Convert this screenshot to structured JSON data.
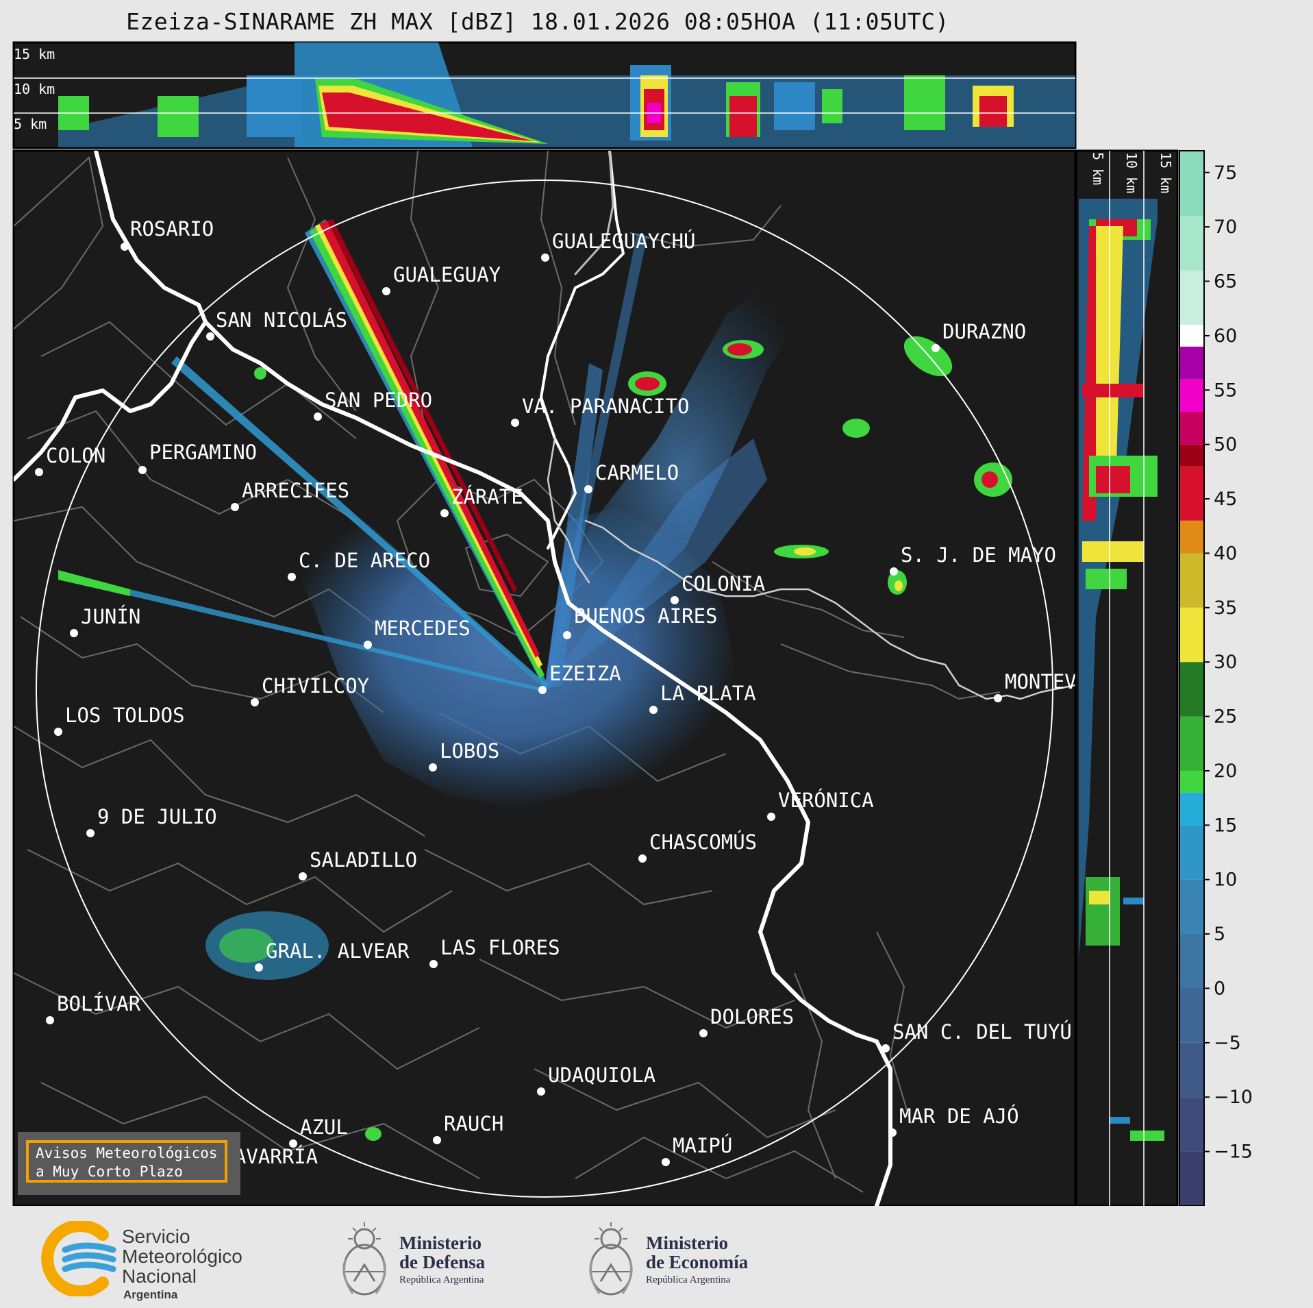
{
  "title": "Ezeiza-SINARAME ZH MAX [dBZ] 18.01.2026 08:05HOA (11:05UTC)",
  "top_panel": {
    "labels": [
      "15 km",
      "10 km",
      "5 km"
    ]
  },
  "side_panel": {
    "labels": [
      "5 km",
      "10 km",
      "15 km"
    ]
  },
  "colorbar": {
    "ticks": [
      "75",
      "70",
      "65",
      "60",
      "55",
      "50",
      "45",
      "40",
      "35",
      "30",
      "25",
      "20",
      "15",
      "10",
      "5",
      "0",
      "−5",
      "−10",
      "−15"
    ],
    "bands": [
      {
        "from": -20,
        "to": -15,
        "color": "#3b3f6b"
      },
      {
        "from": -15,
        "to": -10,
        "color": "#3f4b7a"
      },
      {
        "from": -10,
        "to": -5,
        "color": "#405a88"
      },
      {
        "from": -5,
        "to": 0,
        "color": "#3f6795"
      },
      {
        "from": 0,
        "to": 5,
        "color": "#3c74a2"
      },
      {
        "from": 5,
        "to": 10,
        "color": "#3a84b4"
      },
      {
        "from": 10,
        "to": 15,
        "color": "#2f96c8"
      },
      {
        "from": 15,
        "to": 18,
        "color": "#26acd9"
      },
      {
        "from": 18,
        "to": 20,
        "color": "#3fd63f"
      },
      {
        "from": 20,
        "to": 25,
        "color": "#35b135"
      },
      {
        "from": 25,
        "to": 30,
        "color": "#257a25"
      },
      {
        "from": 30,
        "to": 35,
        "color": "#efe43a"
      },
      {
        "from": 35,
        "to": 40,
        "color": "#cdb92a"
      },
      {
        "from": 40,
        "to": 43,
        "color": "#e08a18"
      },
      {
        "from": 43,
        "to": 48,
        "color": "#d7102c"
      },
      {
        "from": 48,
        "to": 50,
        "color": "#9d0015"
      },
      {
        "from": 50,
        "to": 53,
        "color": "#c6005e"
      },
      {
        "from": 53,
        "to": 56,
        "color": "#f000c8"
      },
      {
        "from": 56,
        "to": 59,
        "color": "#a800a8"
      },
      {
        "from": 59,
        "to": 61,
        "color": "#ffffff"
      },
      {
        "from": 61,
        "to": 66,
        "color": "#c8eee0"
      },
      {
        "from": 66,
        "to": 71,
        "color": "#a8e6cc"
      },
      {
        "from": 71,
        "to": 77,
        "color": "#8adcbc"
      }
    ]
  },
  "cities": [
    {
      "name": "ROSARIO"
    },
    {
      "name": "GUALEGUAYCHÚ"
    },
    {
      "name": "GUALEGUAY"
    },
    {
      "name": "SAN NICOLÁS"
    },
    {
      "name": "DURAZNO"
    },
    {
      "name": "SAN PEDRO"
    },
    {
      "name": "VA. PARANACITO"
    },
    {
      "name": "COLON"
    },
    {
      "name": "PERGAMINO"
    },
    {
      "name": "CARMELO"
    },
    {
      "name": "ARRECIFES"
    },
    {
      "name": "ZÁRATE"
    },
    {
      "name": "S. J. DE MAYO"
    },
    {
      "name": "C. DE ARECO"
    },
    {
      "name": "COLONIA"
    },
    {
      "name": "JUNÍN"
    },
    {
      "name": "BUENOS AIRES"
    },
    {
      "name": "MERCEDES"
    },
    {
      "name": "EZEIZA"
    },
    {
      "name": "MONTEVIDEO"
    },
    {
      "name": "CHIVILCOY"
    },
    {
      "name": "LA PLATA"
    },
    {
      "name": "LOS TOLDOS"
    },
    {
      "name": "LOBOS"
    },
    {
      "name": "VERÓNICA"
    },
    {
      "name": "9 DE JULIO"
    },
    {
      "name": "CHASCOMÚS"
    },
    {
      "name": "SALADILLO"
    },
    {
      "name": "GRAL. ALVEAR"
    },
    {
      "name": "LAS FLORES"
    },
    {
      "name": "BOLÍVAR"
    },
    {
      "name": "DOLORES"
    },
    {
      "name": "SAN C. DEL TUYÚ"
    },
    {
      "name": "UDAQUIOLA"
    },
    {
      "name": "MAR DE AJÓ"
    },
    {
      "name": "AZUL"
    },
    {
      "name": "RAUCH"
    },
    {
      "name": "OLAVARRÍA"
    },
    {
      "name": "MAIPÚ"
    }
  ],
  "alert": {
    "line1": "Avisos Meteorológicos",
    "line2": "a Muy Corto Plazo"
  },
  "footer": {
    "smn": {
      "line1": "Servicio",
      "line2": "Meteorológico",
      "line3": "Nacional",
      "line4": "Argentina"
    },
    "defensa": {
      "line1": "Ministerio",
      "line2": "de Defensa",
      "line3": "República Argentina"
    },
    "economia": {
      "line1": "Ministerio",
      "line2": "de Economía",
      "line3": "República Argentina"
    }
  }
}
